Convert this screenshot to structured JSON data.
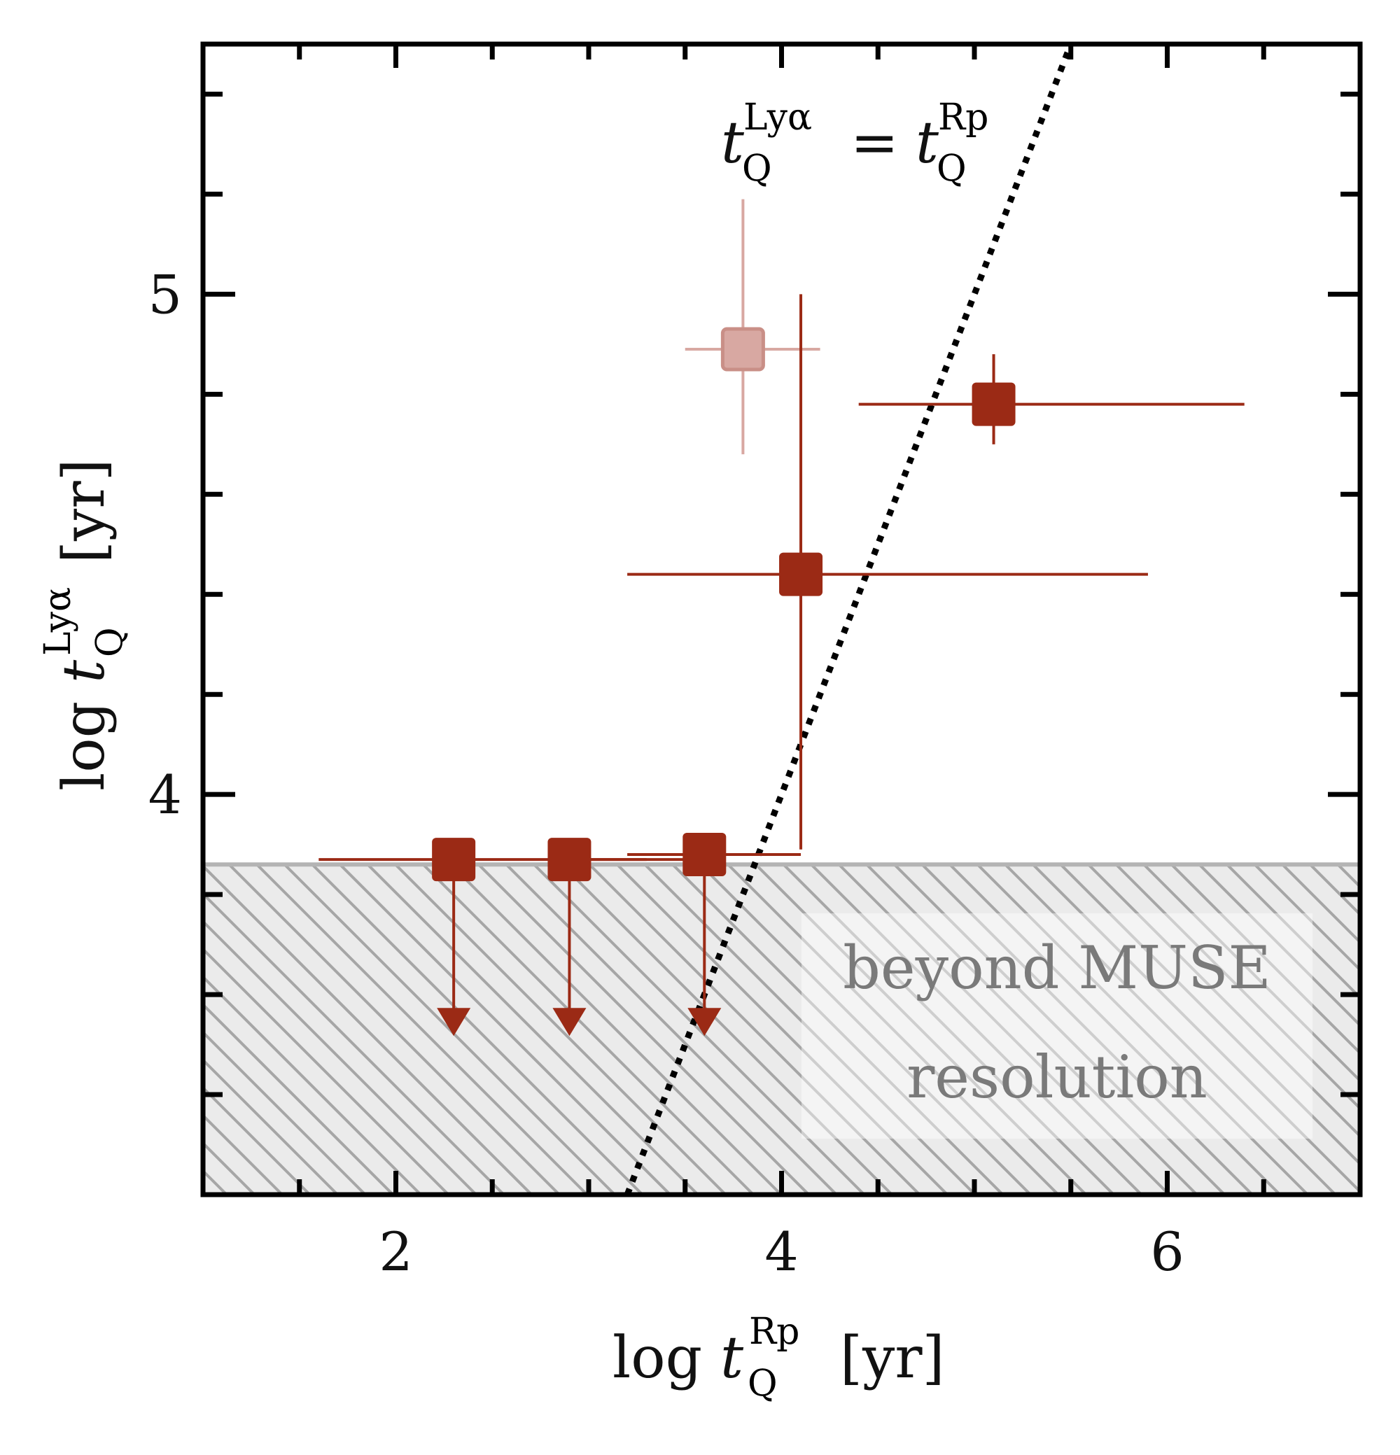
{
  "chart_data": {
    "type": "scatter",
    "xlim": [
      1.0,
      7.0
    ],
    "ylim": [
      3.2,
      5.5
    ],
    "x_ticks": [
      2,
      4,
      6
    ],
    "y_ticks": [
      4,
      5
    ],
    "x_minor_step": 0.5,
    "y_minor_step": 0.2,
    "xlabel": {
      "prefix": "log ",
      "var": "t",
      "sub": "Q",
      "sup": "Rp",
      "unit": "[yr]"
    },
    "ylabel": {
      "prefix": "log ",
      "var": "t",
      "sub": "Q",
      "sup": "Lyα",
      "unit": "[yr]"
    },
    "annotation": {
      "lhs_var": "t",
      "lhs_sub": "Q",
      "lhs_sup": "Lyα",
      "equals": "=",
      "rhs_var": "t",
      "rhs_sub": "Q",
      "rhs_sup": "Rp"
    },
    "shaded_region": {
      "y_max": 3.86,
      "label_line1": "beyond MUSE",
      "label_line2": "resolution",
      "color": "#b4b4b4"
    },
    "reference_line": {
      "style": "dotted",
      "color": "#000000",
      "points": [
        [
          3.2,
          3.2
        ],
        [
          5.5,
          5.5
        ]
      ]
    },
    "marker_color": "#9b2a15",
    "faded_color": "#d8a8a2",
    "points": [
      {
        "x": 2.3,
        "y": 3.87,
        "xerr": [
          0.7,
          1.3
        ],
        "yerr": [
          0,
          0
        ],
        "upper_limit": true,
        "arrow_to": 3.52,
        "faded": false
      },
      {
        "x": 2.9,
        "y": 3.87,
        "xerr": [
          0,
          0.4
        ],
        "yerr": [
          0,
          0
        ],
        "upper_limit": true,
        "arrow_to": 3.52,
        "faded": false
      },
      {
        "x": 3.6,
        "y": 3.88,
        "xerr": [
          0.4,
          0.5
        ],
        "yerr": [
          0,
          0
        ],
        "upper_limit": true,
        "arrow_to": 3.52,
        "faded": false
      },
      {
        "x": 4.1,
        "y": 4.44,
        "xerr": [
          0.9,
          1.8
        ],
        "yerr": [
          0.55,
          0.56
        ],
        "upper_limit": false,
        "faded": false
      },
      {
        "x": 5.1,
        "y": 4.78,
        "xerr": [
          0.7,
          1.3
        ],
        "yerr": [
          0.08,
          0.1
        ],
        "upper_limit": false,
        "faded": false
      },
      {
        "x": 3.8,
        "y": 4.89,
        "xerr": [
          0.3,
          0.4
        ],
        "yerr": [
          0.21,
          0.3
        ],
        "upper_limit": false,
        "faded": true
      }
    ]
  }
}
